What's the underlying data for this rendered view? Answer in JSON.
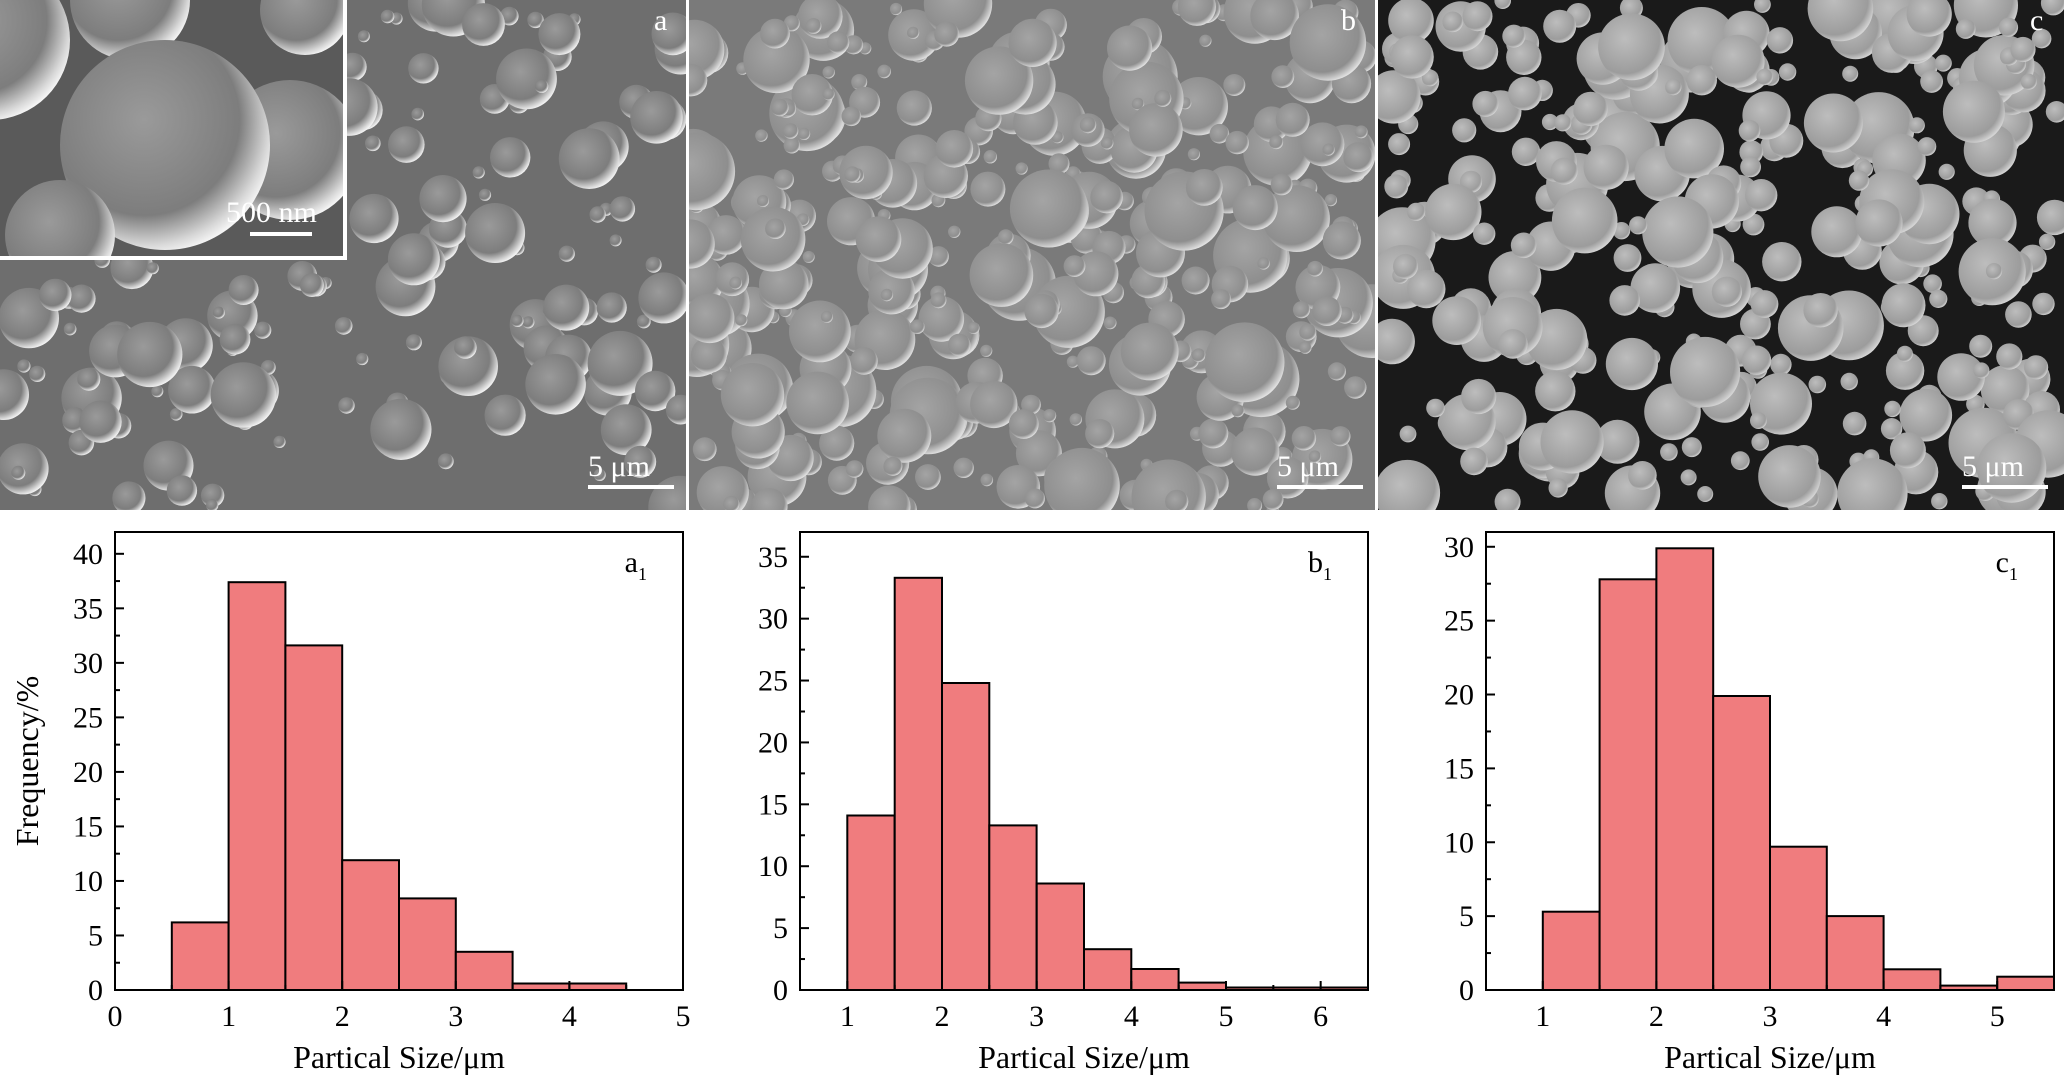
{
  "sem_panels": [
    {
      "id": "a",
      "label": "a",
      "scale_label": "5 μm",
      "inset_scale_label": "500 nm"
    },
    {
      "id": "b",
      "label": "b",
      "scale_label": "5 μm"
    },
    {
      "id": "c",
      "label": "c",
      "scale_label": "5 μm"
    }
  ],
  "colors": {
    "bar_fill": "#f07c7e",
    "bar_stroke": "#000000",
    "sem_bg_a": "#6e6e6e",
    "sem_bg_b": "#7a7a7a",
    "sem_bg_c": "#1a1a1a"
  },
  "chart_data": [
    {
      "type": "bar",
      "panel_label": "a",
      "panel_sub": "1",
      "xlabel": "Partical Size/μm",
      "ylabel": "Frequency/%",
      "xlim": [
        0,
        5
      ],
      "ylim": [
        0,
        42
      ],
      "xticks": [
        0,
        1,
        2,
        3,
        4,
        5
      ],
      "yticks": [
        0,
        5,
        10,
        15,
        20,
        25,
        30,
        35,
        40
      ],
      "bin_width": 0.5,
      "x": [
        0.75,
        1.25,
        1.75,
        2.25,
        2.75,
        3.25,
        3.75,
        4.25
      ],
      "values": [
        6.2,
        37.4,
        31.6,
        11.9,
        8.4,
        3.5,
        0.6,
        0.6
      ],
      "grid": false
    },
    {
      "type": "bar",
      "panel_label": "b",
      "panel_sub": "1",
      "xlabel": "Partical Size/μm",
      "ylabel": "",
      "xlim": [
        0.5,
        6.5
      ],
      "ylim": [
        0,
        37
      ],
      "xticks": [
        1,
        2,
        3,
        4,
        5,
        6
      ],
      "yticks": [
        0,
        5,
        10,
        15,
        20,
        25,
        30,
        35
      ],
      "bin_width": 0.5,
      "x": [
        1.25,
        1.75,
        2.25,
        2.75,
        3.25,
        3.75,
        4.25,
        4.75,
        5.25,
        5.75,
        6.25
      ],
      "values": [
        14.1,
        33.3,
        24.8,
        13.3,
        8.6,
        3.3,
        1.7,
        0.6,
        0.2,
        0.2,
        0.2
      ],
      "grid": false
    },
    {
      "type": "bar",
      "panel_label": "c",
      "panel_sub": "1",
      "xlabel": "Partical Size/μm",
      "ylabel": "",
      "xlim": [
        0.5,
        5.5
      ],
      "ylim": [
        0,
        31
      ],
      "xticks": [
        1,
        2,
        3,
        4,
        5
      ],
      "yticks": [
        0,
        5,
        10,
        15,
        20,
        25,
        30
      ],
      "bin_width": 0.5,
      "x": [
        1.25,
        1.75,
        2.25,
        2.75,
        3.25,
        3.75,
        4.25,
        4.75,
        5.25
      ],
      "values": [
        5.3,
        27.8,
        29.9,
        19.9,
        9.7,
        5.0,
        1.4,
        0.3,
        0.9
      ],
      "grid": false
    }
  ]
}
